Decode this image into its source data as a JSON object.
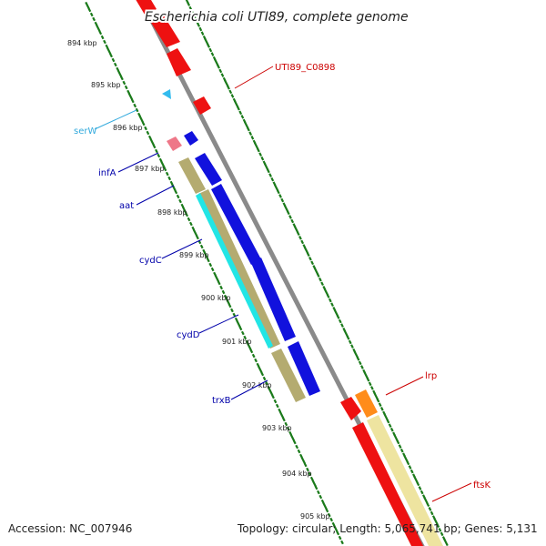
{
  "title": "Escherichia coli UTI89, complete genome",
  "footer": {
    "accession": "Accession: NC_007946",
    "summary": "Topology: circular; Length: 5,065,741 bp; Genes: 5,131"
  },
  "kbp_labels": [
    "894 kbp",
    "895 kbp",
    "896 kbp",
    "897 kbp",
    "898 kbp",
    "899 kbp",
    "900 kbp",
    "901 kbp",
    "902 kbp",
    "903 kbp",
    "904 kbp",
    "905 kbp"
  ],
  "colors": {
    "backbone": "#8a8a8a",
    "cds_red": "#ee1111",
    "cds_blue": "#1111dd",
    "trna_cyan": "#33bbee",
    "rrna_pink": "#ee7788",
    "orf_khaki": "#b4ab70",
    "orf_cyan": "#22e5e5",
    "orange": "#ff8c1a",
    "pale_yellow": "#eee4a0",
    "tick_green": "#1a7a1a",
    "label_blue": "#0000aa",
    "label_red": "#cc0000",
    "label_cyan": "#33aadd"
  },
  "gene_labels": {
    "UTI89_C0898": "UTI89_C0898",
    "serW": "serW",
    "infA": "infA",
    "aat": "aat",
    "cydC": "cydC",
    "cydD": "cydD",
    "trxB": "trxB",
    "lrp": "lrp",
    "ftsK": "ftsK"
  }
}
